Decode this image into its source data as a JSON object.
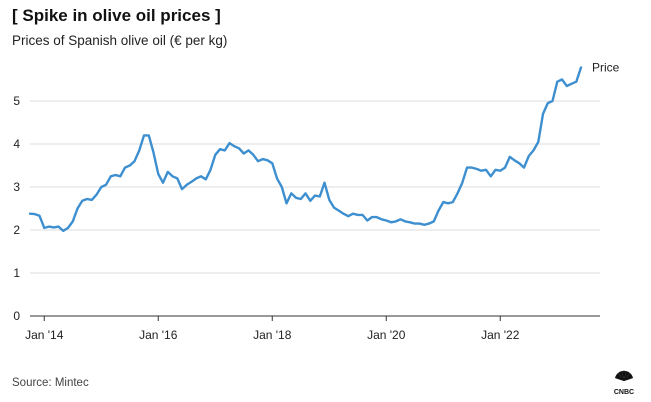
{
  "header": {
    "title": "[ Spike in olive oil prices ]",
    "subtitle": "Prices of Spanish olive oil (€ per kg)"
  },
  "footer": {
    "source": "Source: Mintec",
    "logo_text": "CNBC",
    "logo_icon": "peacock-icon"
  },
  "colors": {
    "line": "#3d8fd0",
    "grid": "#d3d3d3",
    "baseline": "#333333",
    "text": "#222222"
  },
  "chart_data": {
    "type": "line",
    "title": "[ Spike in olive oil prices ]",
    "subtitle": "Prices of Spanish olive oil (€ per kg)",
    "xlabel": "",
    "ylabel": "",
    "ylim": [
      0,
      6
    ],
    "xlim": [
      "2013-10",
      "2023-10"
    ],
    "y_ticks": [
      0,
      1,
      2,
      3,
      4,
      5
    ],
    "x_ticks": [
      {
        "value": "2014-01",
        "label": "Jan '14"
      },
      {
        "value": "2016-01",
        "label": "Jan '16"
      },
      {
        "value": "2018-01",
        "label": "Jan '18"
      },
      {
        "value": "2020-01",
        "label": "Jan '20"
      },
      {
        "value": "2022-01",
        "label": "Jan '22"
      }
    ],
    "grid": true,
    "legend": "end-of-line label",
    "series": [
      {
        "name": "Price",
        "points": [
          [
            "2013-10",
            2.38
          ],
          [
            "2013-11",
            2.37
          ],
          [
            "2013-12",
            2.33
          ],
          [
            "2014-01",
            2.05
          ],
          [
            "2014-02",
            2.08
          ],
          [
            "2014-03",
            2.06
          ],
          [
            "2014-04",
            2.08
          ],
          [
            "2014-05",
            1.98
          ],
          [
            "2014-06",
            2.05
          ],
          [
            "2014-07",
            2.2
          ],
          [
            "2014-08",
            2.5
          ],
          [
            "2014-09",
            2.68
          ],
          [
            "2014-10",
            2.72
          ],
          [
            "2014-11",
            2.7
          ],
          [
            "2014-12",
            2.82
          ],
          [
            "2015-01",
            3.0
          ],
          [
            "2015-02",
            3.05
          ],
          [
            "2015-03",
            3.25
          ],
          [
            "2015-04",
            3.28
          ],
          [
            "2015-05",
            3.25
          ],
          [
            "2015-06",
            3.45
          ],
          [
            "2015-07",
            3.5
          ],
          [
            "2015-08",
            3.6
          ],
          [
            "2015-09",
            3.85
          ],
          [
            "2015-10",
            4.2
          ],
          [
            "2015-11",
            4.2
          ],
          [
            "2015-12",
            3.8
          ],
          [
            "2016-01",
            3.3
          ],
          [
            "2016-02",
            3.1
          ],
          [
            "2016-03",
            3.35
          ],
          [
            "2016-04",
            3.25
          ],
          [
            "2016-05",
            3.2
          ],
          [
            "2016-06",
            2.95
          ],
          [
            "2016-07",
            3.05
          ],
          [
            "2016-08",
            3.12
          ],
          [
            "2016-09",
            3.2
          ],
          [
            "2016-10",
            3.25
          ],
          [
            "2016-11",
            3.18
          ],
          [
            "2016-12",
            3.4
          ],
          [
            "2017-01",
            3.75
          ],
          [
            "2017-02",
            3.88
          ],
          [
            "2017-03",
            3.85
          ],
          [
            "2017-04",
            4.02
          ],
          [
            "2017-05",
            3.95
          ],
          [
            "2017-06",
            3.9
          ],
          [
            "2017-07",
            3.78
          ],
          [
            "2017-08",
            3.85
          ],
          [
            "2017-09",
            3.75
          ],
          [
            "2017-10",
            3.6
          ],
          [
            "2017-11",
            3.65
          ],
          [
            "2017-12",
            3.62
          ],
          [
            "2018-01",
            3.55
          ],
          [
            "2018-02",
            3.2
          ],
          [
            "2018-03",
            3.0
          ],
          [
            "2018-04",
            2.62
          ],
          [
            "2018-05",
            2.85
          ],
          [
            "2018-06",
            2.75
          ],
          [
            "2018-07",
            2.72
          ],
          [
            "2018-08",
            2.85
          ],
          [
            "2018-09",
            2.68
          ],
          [
            "2018-10",
            2.8
          ],
          [
            "2018-11",
            2.78
          ],
          [
            "2018-12",
            3.1
          ],
          [
            "2019-01",
            2.7
          ],
          [
            "2019-02",
            2.52
          ],
          [
            "2019-03",
            2.45
          ],
          [
            "2019-04",
            2.38
          ],
          [
            "2019-05",
            2.32
          ],
          [
            "2019-06",
            2.38
          ],
          [
            "2019-07",
            2.35
          ],
          [
            "2019-08",
            2.35
          ],
          [
            "2019-09",
            2.22
          ],
          [
            "2019-10",
            2.3
          ],
          [
            "2019-11",
            2.3
          ],
          [
            "2019-12",
            2.25
          ],
          [
            "2020-01",
            2.22
          ],
          [
            "2020-02",
            2.18
          ],
          [
            "2020-03",
            2.2
          ],
          [
            "2020-04",
            2.25
          ],
          [
            "2020-05",
            2.2
          ],
          [
            "2020-06",
            2.18
          ],
          [
            "2020-07",
            2.15
          ],
          [
            "2020-08",
            2.15
          ],
          [
            "2020-09",
            2.12
          ],
          [
            "2020-10",
            2.15
          ],
          [
            "2020-11",
            2.2
          ],
          [
            "2020-12",
            2.45
          ],
          [
            "2021-01",
            2.65
          ],
          [
            "2021-02",
            2.62
          ],
          [
            "2021-03",
            2.65
          ],
          [
            "2021-04",
            2.85
          ],
          [
            "2021-05",
            3.1
          ],
          [
            "2021-06",
            3.45
          ],
          [
            "2021-07",
            3.45
          ],
          [
            "2021-08",
            3.42
          ],
          [
            "2021-09",
            3.38
          ],
          [
            "2021-10",
            3.4
          ],
          [
            "2021-11",
            3.25
          ],
          [
            "2021-12",
            3.4
          ],
          [
            "2022-01",
            3.38
          ],
          [
            "2022-02",
            3.45
          ],
          [
            "2022-03",
            3.7
          ],
          [
            "2022-04",
            3.62
          ],
          [
            "2022-05",
            3.55
          ],
          [
            "2022-06",
            3.45
          ],
          [
            "2022-07",
            3.72
          ],
          [
            "2022-08",
            3.85
          ],
          [
            "2022-09",
            4.05
          ],
          [
            "2022-10",
            4.7
          ],
          [
            "2022-11",
            4.95
          ],
          [
            "2022-12",
            5.0
          ],
          [
            "2023-01",
            5.45
          ],
          [
            "2023-02",
            5.5
          ],
          [
            "2023-03",
            5.35
          ],
          [
            "2023-04",
            5.4
          ],
          [
            "2023-05",
            5.45
          ],
          [
            "2023-06",
            5.78
          ]
        ]
      }
    ]
  }
}
